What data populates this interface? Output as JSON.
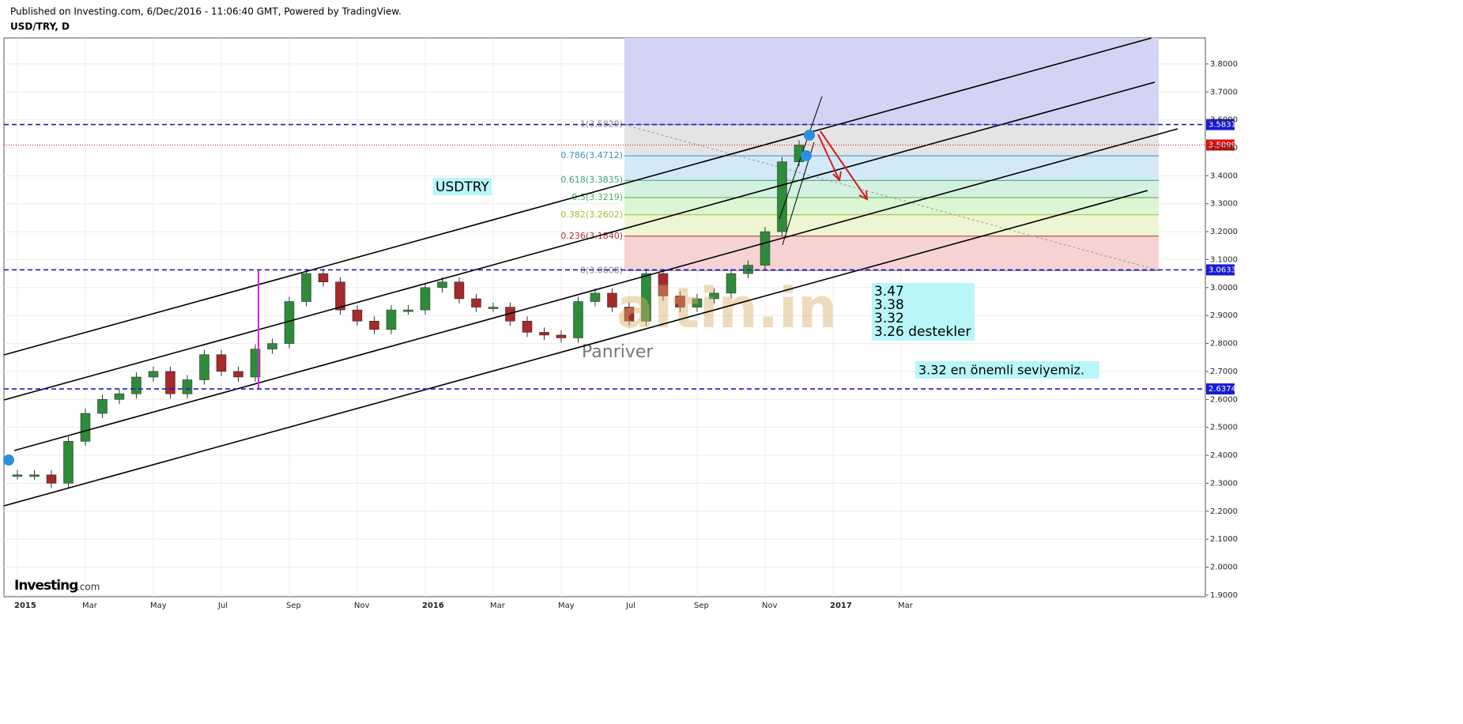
{
  "header": {
    "published": "Published on Investing.com, 6/Dec/2016 - 11:06:40 GMT, Powered by TradingView.",
    "symbol": "USD/TRY, D"
  },
  "chart_data": {
    "type": "candlestick",
    "categories": [
      "2015",
      null,
      null,
      null,
      "Mar",
      null,
      null,
      null,
      "May",
      null,
      null,
      null,
      "Jul",
      null,
      null,
      null,
      "Sep",
      null,
      null,
      null,
      "Nov",
      null,
      null,
      null,
      "2016",
      null,
      null,
      null,
      "Mar",
      null,
      null,
      null,
      "May",
      null,
      null,
      null,
      "Jul",
      null,
      null,
      null,
      "Sep",
      null,
      null,
      null,
      "Nov",
      null,
      null,
      null,
      "2017",
      null,
      null,
      null,
      "Mar",
      null,
      null,
      null
    ],
    "series": [
      {
        "name": "USD/TRY",
        "up_color": "#2e8b3a",
        "down_color": "#a52a2a",
        "values": [
          2.33,
          2.33,
          2.3,
          2.45,
          2.55,
          2.6,
          2.62,
          2.68,
          2.7,
          2.62,
          2.67,
          2.76,
          2.7,
          2.68,
          2.78,
          2.8,
          2.95,
          3.05,
          3.02,
          2.92,
          2.88,
          2.85,
          2.92,
          2.92,
          3.0,
          3.02,
          2.96,
          2.93,
          2.93,
          2.88,
          2.84,
          2.83,
          2.82,
          2.95,
          2.98,
          2.93,
          2.88,
          3.05,
          2.97,
          2.93,
          2.96,
          2.98,
          3.05,
          3.08,
          3.2,
          3.45,
          3.51,
          null,
          null,
          null,
          null,
          null,
          null,
          null,
          null,
          null
        ]
      }
    ],
    "ylim": [
      1.894,
      3.893
    ],
    "yticks": [
      {
        "value": 1.9,
        "label": "1.9000"
      },
      {
        "value": 2.0,
        "label": "2.0000"
      },
      {
        "value": 2.1,
        "label": "2.1000"
      },
      {
        "value": 2.2,
        "label": "2.2000"
      },
      {
        "value": 2.3,
        "label": "2.3000"
      },
      {
        "value": 2.4,
        "label": "2.4000"
      },
      {
        "value": 2.5,
        "label": "2.5000"
      },
      {
        "value": 2.6,
        "label": "2.6000"
      },
      {
        "value": 2.7,
        "label": "2.7000"
      },
      {
        "value": 2.8,
        "label": "2.8000"
      },
      {
        "value": 2.9,
        "label": "2.9000"
      },
      {
        "value": 3.0,
        "label": "3.0000"
      },
      {
        "value": 3.1,
        "label": "3.1000"
      },
      {
        "value": 3.2,
        "label": "3.2000"
      },
      {
        "value": 3.3,
        "label": "3.3000"
      },
      {
        "value": 3.4,
        "label": "3.4000"
      },
      {
        "value": 3.5,
        "label": "3.5000"
      },
      {
        "value": 3.6,
        "label": "3.6000"
      },
      {
        "value": 3.7,
        "label": "3.7000"
      },
      {
        "value": 3.8,
        "label": "3.8000"
      }
    ],
    "grid": true,
    "price_lines": [
      {
        "value": 3.5831,
        "color": "#1a1ad0"
      },
      {
        "value": 3.5099,
        "color": "#e01010"
      },
      {
        "value": 3.0633,
        "color": "#1a1ad0"
      },
      {
        "value": 2.6374,
        "color": "#1a1ad0"
      }
    ],
    "fib_levels": [
      {
        "label": "1(3.5829)",
        "value": 3.5829,
        "color": "#888888",
        "fill": "#e4e4e4"
      },
      {
        "label": "0.786(3.4712)",
        "value": 3.4712,
        "color": "#3d8fc4",
        "fill": "#d3e9f7"
      },
      {
        "label": "0.618(3.3835)",
        "value": 3.3835,
        "color": "#3aa37a",
        "fill": "#d3f0e0"
      },
      {
        "label": "0.5(3.3219)",
        "value": 3.3219,
        "color": "#4caf50",
        "fill": "#dcf5d3"
      },
      {
        "label": "0.382(3.2602)",
        "value": 3.2602,
        "color": "#a8b830",
        "fill": "#eef5d3"
      },
      {
        "label": "0.236(3.1840)",
        "value": 3.184,
        "color": "#a83232",
        "fill": "#f6d3d3"
      },
      {
        "label": "0(3.0608)",
        "value": 3.0608,
        "color": "#888888",
        "fill": null
      }
    ],
    "annotations": {
      "title_box": "USDTRY",
      "supports": [
        "3.47",
        "3.38",
        "3.32",
        "3.26 destekler"
      ],
      "key_level": "3.32 en önemli seviyemiz.",
      "author": "Panriver",
      "watermark": "altin.in",
      "logo": "Investing",
      "logo_suffix": ".com"
    }
  }
}
